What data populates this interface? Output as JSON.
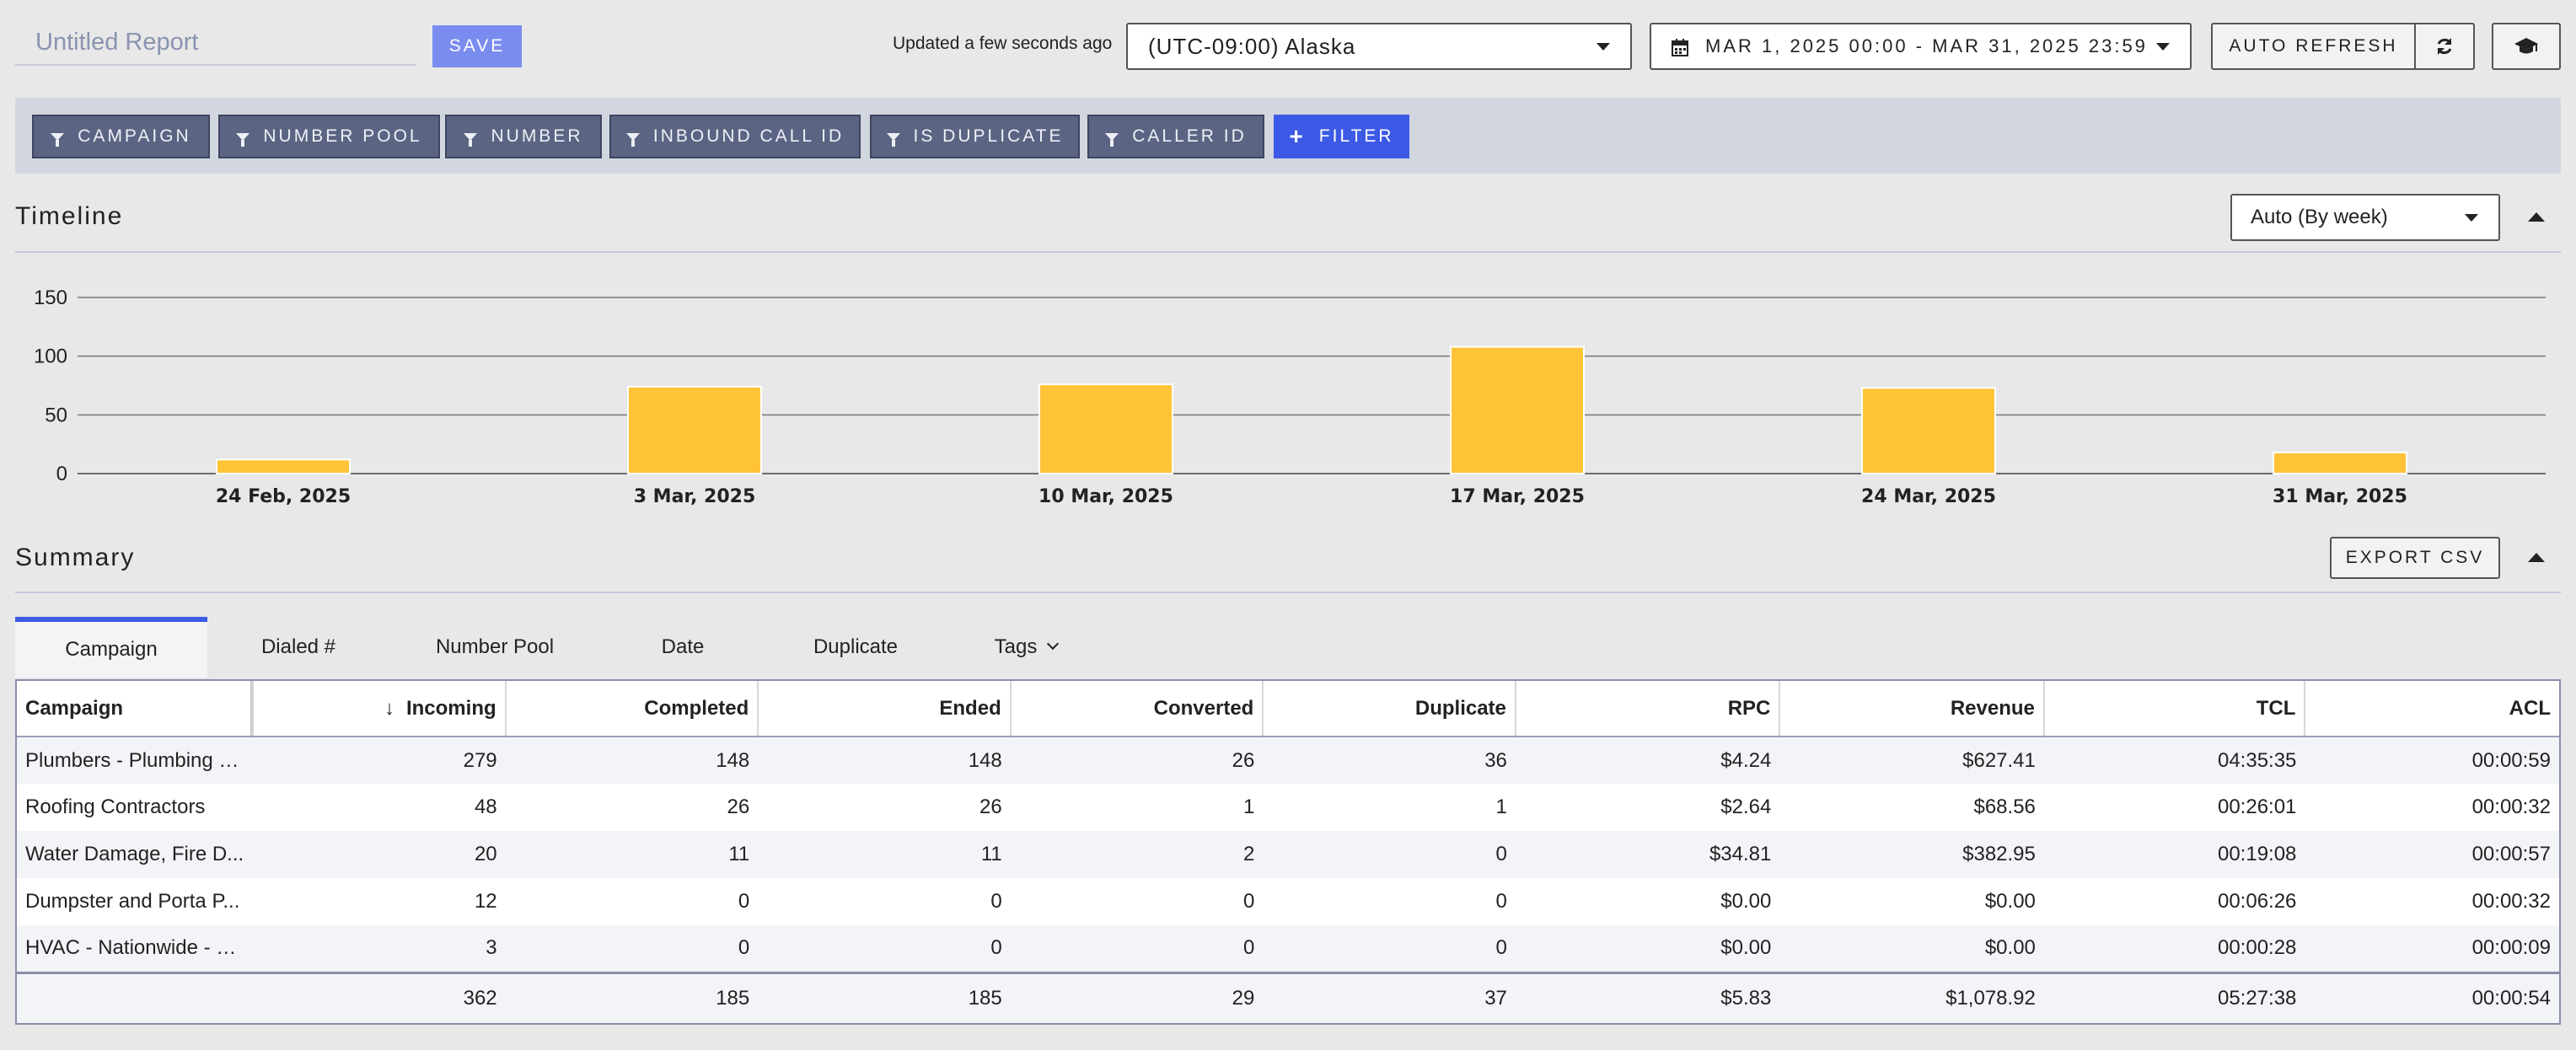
{
  "header": {
    "title_placeholder": "Untitled Report",
    "save_label": "SAVE",
    "updated_text": "Updated a few seconds ago",
    "timezone": "(UTC-09:00) Alaska",
    "date_range": "MAR 1, 2025 00:00 - MAR 31, 2025 23:59",
    "auto_refresh_label": "AUTO REFRESH"
  },
  "filters": [
    "CAMPAIGN",
    "NUMBER POOL",
    "NUMBER",
    "INBOUND CALL ID",
    "IS DUPLICATE",
    "CALLER ID"
  ],
  "add_filter_label": "FILTER",
  "timeline": {
    "title": "Timeline",
    "granularity": "Auto (By week)"
  },
  "chart_data": {
    "type": "bar",
    "categories": [
      "24 Feb, 2025",
      "3 Mar, 2025",
      "10 Mar, 2025",
      "17 Mar, 2025",
      "24 Mar, 2025",
      "31 Mar, 2025"
    ],
    "values": [
      12,
      74,
      76,
      108,
      73,
      18
    ],
    "ylim": [
      0,
      150
    ],
    "yticks": [
      0,
      50,
      100,
      150
    ],
    "grid": true,
    "bar_color": "#ffc338"
  },
  "summary": {
    "title": "Summary",
    "export_label": "EXPORT CSV",
    "tabs": [
      "Campaign",
      "Dialed #",
      "Number Pool",
      "Date",
      "Duplicate",
      "Tags"
    ],
    "active_tab": 0,
    "columns": [
      "Campaign",
      "Incoming",
      "Completed",
      "Ended",
      "Converted",
      "Duplicate",
      "RPC",
      "Revenue",
      "TCL",
      "ACL"
    ],
    "rows": [
      [
        "Plumbers - Plumbing - ...",
        "279",
        "148",
        "148",
        "26",
        "36",
        "$4.24",
        "$627.41",
        "04:35:35",
        "00:00:59"
      ],
      [
        "Roofing Contractors",
        "48",
        "26",
        "26",
        "1",
        "1",
        "$2.64",
        "$68.56",
        "00:26:01",
        "00:00:32"
      ],
      [
        "Water Damage, Fire D...",
        "20",
        "11",
        "11",
        "2",
        "0",
        "$34.81",
        "$382.95",
        "00:19:08",
        "00:00:57"
      ],
      [
        "Dumpster and Porta P...",
        "12",
        "0",
        "0",
        "0",
        "0",
        "$0.00",
        "$0.00",
        "00:06:26",
        "00:00:32"
      ],
      [
        "HVAC - Nationwide - V...",
        "3",
        "0",
        "0",
        "0",
        "0",
        "$0.00",
        "$0.00",
        "00:00:28",
        "00:00:09"
      ]
    ],
    "totals": [
      "",
      "362",
      "185",
      "185",
      "29",
      "37",
      "$5.83",
      "$1,078.92",
      "05:27:38",
      "00:00:54"
    ]
  }
}
